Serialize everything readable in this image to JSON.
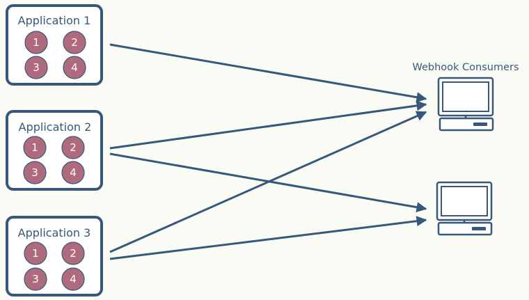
{
  "applications": [
    {
      "title": "Application 1",
      "instances": [
        "1",
        "2",
        "3",
        "4"
      ]
    },
    {
      "title": "Application 2",
      "instances": [
        "1",
        "2",
        "3",
        "4"
      ]
    },
    {
      "title": "Application 3",
      "instances": [
        "1",
        "2",
        "3",
        "4"
      ]
    }
  ],
  "consumers": {
    "label": "Webhook Consumers",
    "count": 2
  },
  "connections": [
    {
      "from": "Application 1",
      "to": "consumer 1"
    },
    {
      "from": "Application 2",
      "to": "consumer 1"
    },
    {
      "from": "Application 2",
      "to": "consumer 2"
    },
    {
      "from": "Application 3",
      "to": "consumer 1"
    },
    {
      "from": "Application 3",
      "to": "consumer 2"
    }
  ],
  "colors": {
    "stroke": "#36587a",
    "instance_fill": "#b06a7e",
    "background": "#fbfbf6"
  }
}
